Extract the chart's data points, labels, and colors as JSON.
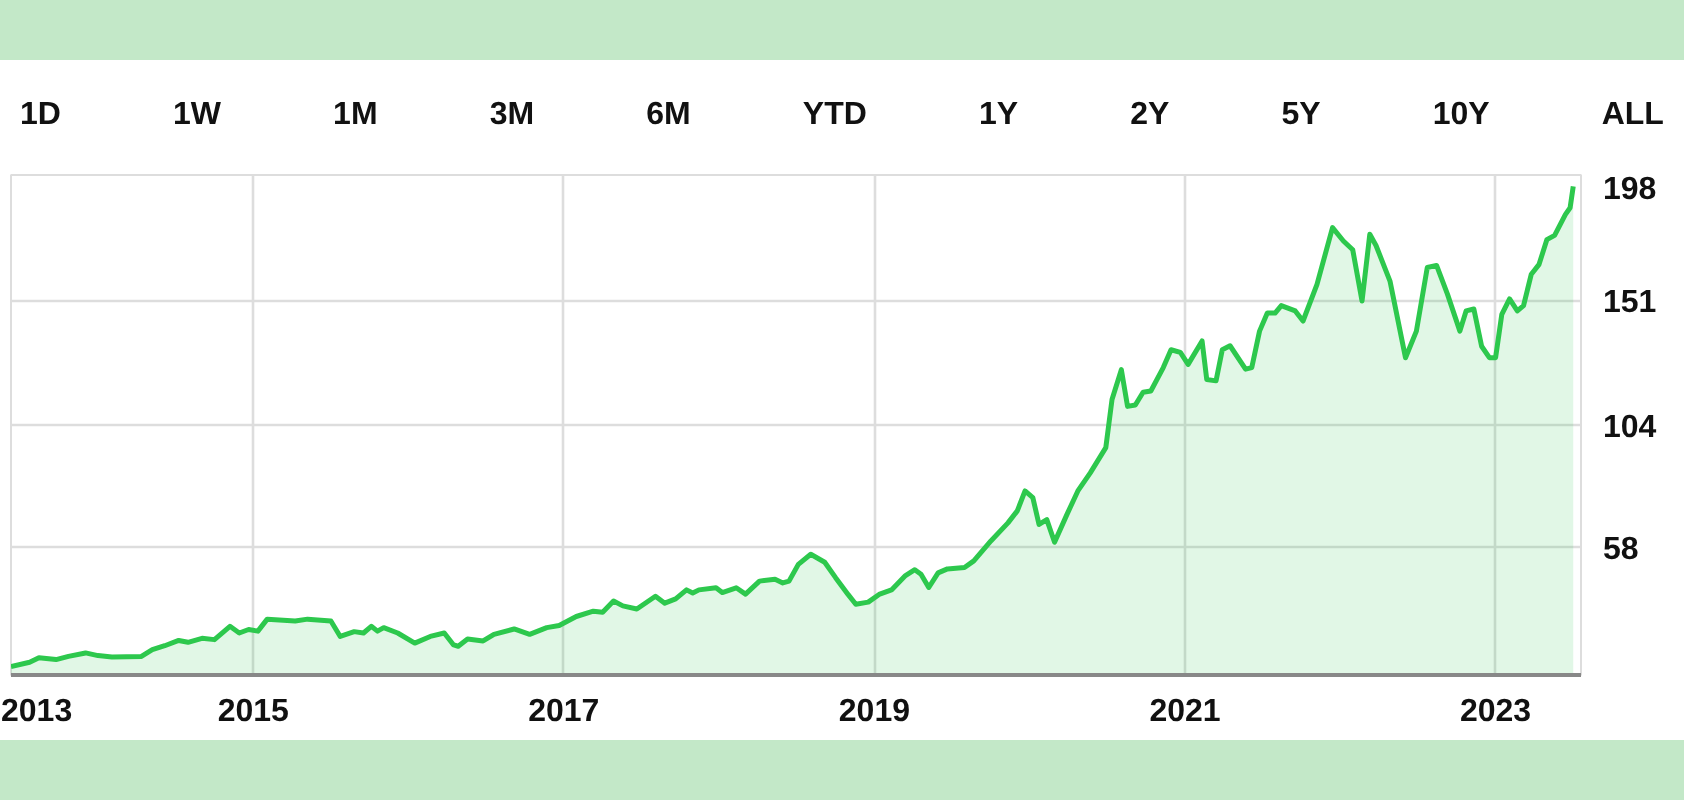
{
  "chart_data": {
    "type": "area",
    "annotations": [
      "1D",
      "1W",
      "1M",
      "3M",
      "6M",
      "YTD",
      "1Y",
      "2Y",
      "5Y",
      "10Y",
      "ALL"
    ],
    "xlim": [
      2013.44,
      2023.55
    ],
    "xticks": [
      {
        "value": 2013.44,
        "label": "2013"
      },
      2015,
      2017,
      2019,
      2021,
      2023
    ],
    "ylim": [
      10,
      198
    ],
    "yticks": [
      58,
      104,
      151,
      198
    ],
    "grid": true,
    "series": [
      {
        "color": "#2dc84d",
        "x": [
          2013.44,
          2013.56,
          2013.62,
          2013.73,
          2013.81,
          2013.92,
          2014.0,
          2014.09,
          2014.28,
          2014.35,
          2014.43,
          2014.52,
          2014.58,
          2014.67,
          2014.75,
          2014.85,
          2014.91,
          2014.97,
          2015.03,
          2015.09,
          2015.27,
          2015.35,
          2015.5,
          2015.56,
          2015.65,
          2015.71,
          2015.76,
          2015.8,
          2015.84,
          2015.93,
          2016.04,
          2016.14,
          2016.23,
          2016.29,
          2016.32,
          2016.38,
          2016.48,
          2016.55,
          2016.68,
          2016.78,
          2016.89,
          2016.97,
          2017.08,
          2017.19,
          2017.25,
          2017.32,
          2017.38,
          2017.47,
          2017.59,
          2017.65,
          2017.72,
          2017.79,
          2017.83,
          2017.87,
          2017.98,
          2018.02,
          2018.11,
          2018.17,
          2018.26,
          2018.36,
          2018.41,
          2018.45,
          2018.51,
          2018.59,
          2018.68,
          2018.75,
          2018.83,
          2018.88,
          2018.96,
          2019.03,
          2019.11,
          2019.2,
          2019.26,
          2019.3,
          2019.35,
          2019.41,
          2019.47,
          2019.58,
          2019.64,
          2019.75,
          2019.86,
          2019.92,
          2019.97,
          2020.02,
          2020.06,
          2020.11,
          2020.16,
          2020.24,
          2020.31,
          2020.39,
          2020.49,
          2020.53,
          2020.59,
          2020.63,
          2020.68,
          2020.73,
          2020.78,
          2020.86,
          2020.91,
          2020.97,
          2021.02,
          2021.11,
          2021.14,
          2021.2,
          2021.24,
          2021.29,
          2021.39,
          2021.43,
          2021.48,
          2021.53,
          2021.58,
          2021.62,
          2021.71,
          2021.76,
          2021.85,
          2021.95,
          2022.02,
          2022.08,
          2022.14,
          2022.19,
          2022.23,
          2022.32,
          2022.42,
          2022.49,
          2022.56,
          2022.62,
          2022.69,
          2022.77,
          2022.81,
          2022.86,
          2022.91,
          2022.96,
          2023.0,
          2023.04,
          2023.09,
          2023.14,
          2023.18,
          2023.23,
          2023.28,
          2023.33,
          2023.38,
          2023.45,
          2023.48,
          2023.5
        ],
        "values": [
          13.2,
          14.8,
          16.5,
          15.8,
          17.0,
          18.3,
          17.3,
          16.8,
          17.0,
          19.5,
          21.0,
          23.0,
          22.3,
          23.8,
          23.3,
          28.3,
          25.8,
          27.1,
          26.5,
          31.0,
          30.3,
          31.0,
          30.3,
          24.5,
          26.3,
          25.8,
          28.3,
          26.5,
          27.8,
          25.8,
          22.0,
          24.5,
          25.8,
          21.3,
          20.8,
          23.5,
          22.8,
          25.3,
          27.3,
          25.3,
          27.8,
          28.6,
          32.0,
          34.0,
          33.6,
          37.8,
          36.0,
          34.8,
          39.6,
          37.0,
          38.6,
          42.0,
          40.8,
          42.0,
          42.8,
          41.0,
          42.8,
          40.4,
          45.3,
          46.0,
          44.6,
          45.3,
          51.6,
          55.4,
          52.4,
          46.6,
          40.3,
          36.6,
          37.4,
          40.3,
          42.0,
          47.4,
          49.6,
          47.9,
          42.9,
          48.4,
          49.9,
          50.4,
          52.9,
          60.4,
          67.2,
          71.7,
          79.2,
          76.7,
          66.6,
          68.4,
          59.9,
          70.4,
          79.2,
          86.0,
          95.5,
          113.6,
          124.8,
          111.0,
          111.5,
          116.3,
          116.8,
          125.6,
          132.3,
          131.3,
          126.8,
          135.6,
          121.1,
          120.6,
          132.3,
          133.8,
          125.0,
          125.6,
          139.3,
          146.1,
          146.1,
          148.9,
          146.9,
          143.1,
          156.9,
          178.2,
          173.2,
          169.9,
          150.6,
          175.7,
          171.5,
          158.1,
          129.3,
          139.3,
          163.2,
          164.0,
          153.2,
          139.3,
          146.9,
          147.6,
          133.6,
          129.3,
          129.3,
          145.6,
          151.4,
          146.9,
          148.9,
          160.7,
          164.4,
          173.7,
          175.3,
          183.2,
          185.7,
          193.7
        ]
      }
    ]
  }
}
